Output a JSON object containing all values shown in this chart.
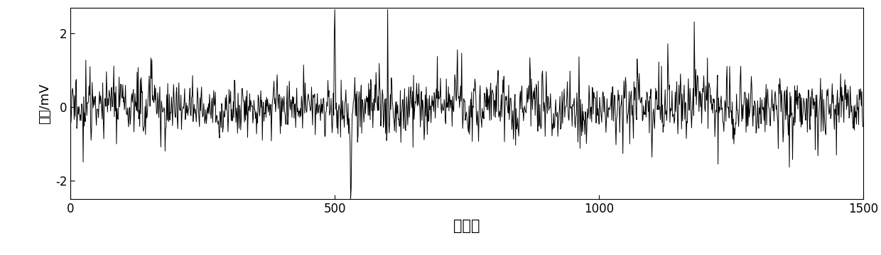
{
  "n_samples": 1500,
  "xlim": [
    0,
    1500
  ],
  "ylim": [
    -2.5,
    2.7
  ],
  "yticks": [
    -2,
    0,
    2
  ],
  "xticks": [
    0,
    500,
    1000,
    1500
  ],
  "xlabel": "采样点",
  "ylabel": "幅值/mV",
  "line_color": "#000000",
  "line_width": 0.7,
  "background_color": "#ffffff",
  "xlabel_fontsize": 15,
  "ylabel_fontsize": 13,
  "tick_fontsize": 12
}
